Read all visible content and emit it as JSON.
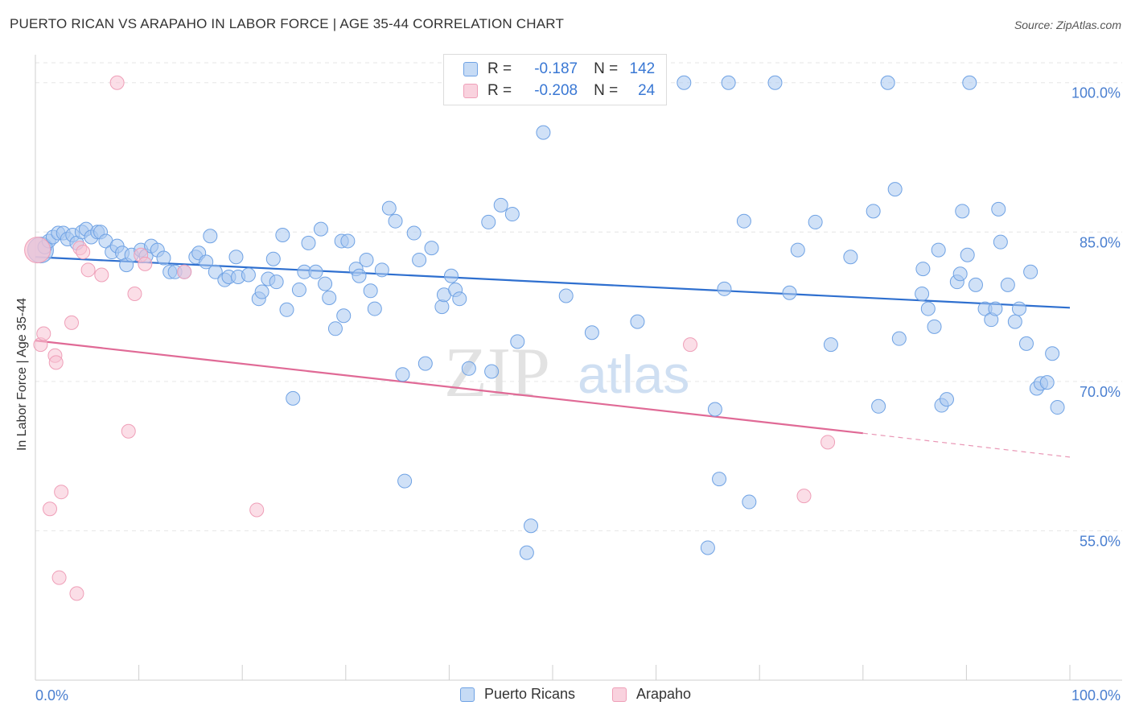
{
  "title": "PUERTO RICAN VS ARAPAHO IN LABOR FORCE | AGE 35-44 CORRELATION CHART",
  "source": "Source: ZipAtlas.com",
  "watermark": {
    "zip": "ZIP",
    "atlas": "atlas"
  },
  "legend_top": [
    {
      "r_label": "R =",
      "r_value": "-0.187",
      "n_label": "N =",
      "n_value": "142",
      "color": "#9ec1ef"
    },
    {
      "r_label": "R =",
      "r_value": "-0.208",
      "n_label": "N =",
      "n_value": "24",
      "color": "#f5b5c8"
    }
  ],
  "legend_bottom": [
    {
      "label": "Puerto Ricans",
      "color": "#9ec1ef"
    },
    {
      "label": "Arapaho",
      "color": "#f5b5c8"
    }
  ],
  "chart_data": {
    "type": "scatter",
    "xlabel": "",
    "ylabel": "In Labor Force | Age 35-44",
    "xlim": [
      0,
      100
    ],
    "ylim": [
      40,
      102
    ],
    "x_tick_labels": [
      "0.0%",
      "100.0%"
    ],
    "y_ticks": [
      55,
      70,
      85,
      100
    ],
    "y_tick_labels": [
      "55.0%",
      "70.0%",
      "85.0%",
      "100.0%"
    ],
    "grid": true,
    "series": [
      {
        "name": "Puerto Ricans",
        "color": "#6fa2e4",
        "fill": "#a9c8f0",
        "trend": {
          "x": [
            0,
            100
          ],
          "y": [
            82.5,
            77.4
          ],
          "color": "#2e6fcf"
        },
        "points": [
          [
            0.5,
            83.2
          ],
          [
            0.9,
            83.5
          ],
          [
            1.3,
            84.1
          ],
          [
            1.7,
            84.5
          ],
          [
            2.2,
            84.9
          ],
          [
            2.7,
            84.9
          ],
          [
            3.1,
            84.3
          ],
          [
            3.6,
            84.7
          ],
          [
            4.0,
            83.9
          ],
          [
            4.5,
            85.0
          ],
          [
            4.9,
            85.3
          ],
          [
            5.4,
            84.5
          ],
          [
            6.0,
            85.0
          ],
          [
            6.3,
            85.0
          ],
          [
            6.8,
            84.1
          ],
          [
            7.4,
            83.0
          ],
          [
            7.9,
            83.6
          ],
          [
            8.4,
            82.9
          ],
          [
            8.8,
            81.7
          ],
          [
            9.3,
            82.7
          ],
          [
            10.2,
            83.2
          ],
          [
            10.7,
            82.6
          ],
          [
            11.2,
            83.6
          ],
          [
            11.8,
            83.2
          ],
          [
            12.4,
            82.4
          ],
          [
            13.0,
            81.0
          ],
          [
            13.5,
            81.0
          ],
          [
            14.4,
            81.0
          ],
          [
            15.5,
            82.5
          ],
          [
            15.8,
            82.9
          ],
          [
            16.5,
            82.0
          ],
          [
            16.9,
            84.6
          ],
          [
            17.4,
            81.0
          ],
          [
            18.3,
            80.2
          ],
          [
            18.7,
            80.5
          ],
          [
            19.4,
            82.5
          ],
          [
            19.6,
            80.5
          ],
          [
            20.6,
            80.7
          ],
          [
            21.6,
            78.3
          ],
          [
            21.9,
            79.0
          ],
          [
            22.5,
            80.3
          ],
          [
            23.0,
            82.3
          ],
          [
            23.3,
            80.0
          ],
          [
            23.9,
            84.7
          ],
          [
            24.3,
            77.2
          ],
          [
            24.9,
            68.3
          ],
          [
            25.5,
            79.2
          ],
          [
            26.0,
            81.0
          ],
          [
            26.4,
            83.9
          ],
          [
            27.1,
            81.0
          ],
          [
            27.6,
            85.3
          ],
          [
            28.0,
            79.8
          ],
          [
            28.4,
            78.4
          ],
          [
            29.0,
            75.3
          ],
          [
            29.6,
            84.1
          ],
          [
            29.8,
            76.6
          ],
          [
            30.2,
            84.1
          ],
          [
            31.0,
            81.3
          ],
          [
            31.3,
            80.6
          ],
          [
            32.0,
            82.2
          ],
          [
            32.4,
            79.1
          ],
          [
            32.8,
            77.3
          ],
          [
            33.5,
            81.2
          ],
          [
            34.2,
            87.4
          ],
          [
            34.8,
            86.1
          ],
          [
            35.5,
            70.7
          ],
          [
            35.7,
            60.0
          ],
          [
            36.6,
            84.9
          ],
          [
            37.1,
            82.2
          ],
          [
            37.7,
            71.8
          ],
          [
            38.3,
            83.4
          ],
          [
            39.3,
            77.5
          ],
          [
            39.5,
            78.7
          ],
          [
            40.2,
            80.6
          ],
          [
            40.6,
            79.2
          ],
          [
            41.0,
            78.3
          ],
          [
            41.9,
            71.3
          ],
          [
            43.8,
            86.0
          ],
          [
            44.1,
            71.0
          ],
          [
            45.0,
            87.7
          ],
          [
            46.1,
            86.8
          ],
          [
            46.6,
            74.0
          ],
          [
            47.3,
            99.8
          ],
          [
            47.5,
            52.8
          ],
          [
            47.9,
            55.5
          ],
          [
            49.1,
            95.0
          ],
          [
            51.3,
            78.6
          ],
          [
            53.8,
            74.9
          ],
          [
            58.2,
            76.0
          ],
          [
            62.7,
            100.0
          ],
          [
            65.0,
            53.3
          ],
          [
            65.7,
            67.2
          ],
          [
            66.1,
            60.2
          ],
          [
            66.6,
            79.3
          ],
          [
            67.0,
            100.0
          ],
          [
            68.5,
            86.1
          ],
          [
            69.0,
            57.9
          ],
          [
            71.5,
            100.0
          ],
          [
            72.9,
            78.9
          ],
          [
            73.7,
            83.2
          ],
          [
            75.4,
            86.0
          ],
          [
            76.9,
            73.7
          ],
          [
            78.8,
            82.5
          ],
          [
            81.0,
            87.1
          ],
          [
            81.5,
            67.5
          ],
          [
            82.4,
            100.0
          ],
          [
            83.1,
            89.3
          ],
          [
            83.5,
            74.3
          ],
          [
            85.7,
            78.8
          ],
          [
            85.8,
            81.3
          ],
          [
            86.3,
            77.3
          ],
          [
            86.9,
            75.5
          ],
          [
            87.3,
            83.2
          ],
          [
            87.6,
            67.6
          ],
          [
            88.1,
            68.2
          ],
          [
            89.1,
            80.0
          ],
          [
            89.4,
            80.8
          ],
          [
            89.6,
            87.1
          ],
          [
            90.1,
            82.7
          ],
          [
            90.3,
            100.0
          ],
          [
            90.9,
            79.7
          ],
          [
            91.8,
            77.3
          ],
          [
            92.4,
            76.2
          ],
          [
            92.8,
            77.3
          ],
          [
            93.1,
            87.3
          ],
          [
            93.3,
            84.0
          ],
          [
            94.0,
            79.7
          ],
          [
            94.7,
            76.0
          ],
          [
            95.1,
            77.3
          ],
          [
            95.8,
            73.8
          ],
          [
            96.2,
            81.0
          ],
          [
            96.8,
            69.3
          ],
          [
            97.2,
            69.8
          ],
          [
            97.8,
            69.9
          ],
          [
            98.3,
            72.8
          ],
          [
            98.8,
            67.4
          ]
        ]
      },
      {
        "name": "Arapaho",
        "color": "#ef9fb8",
        "fill": "#f7c3d3",
        "trend": {
          "x": [
            0,
            80
          ],
          "y": [
            74.1,
            64.8
          ],
          "dash_x": [
            80,
            100
          ],
          "dash_y": [
            64.8,
            62.4
          ],
          "color": "#e06a96"
        },
        "points": [
          [
            0.2,
            83.2
          ],
          [
            0.5,
            73.7
          ],
          [
            0.8,
            74.8
          ],
          [
            1.4,
            57.2
          ],
          [
            1.9,
            72.6
          ],
          [
            2.0,
            71.9
          ],
          [
            2.3,
            50.3
          ],
          [
            2.5,
            58.9
          ],
          [
            3.5,
            75.9
          ],
          [
            4.0,
            48.7
          ],
          [
            4.3,
            83.4
          ],
          [
            4.6,
            83.0
          ],
          [
            5.1,
            81.2
          ],
          [
            6.4,
            80.7
          ],
          [
            7.9,
            100.0
          ],
          [
            9.0,
            65.0
          ],
          [
            9.6,
            78.8
          ],
          [
            10.2,
            82.7
          ],
          [
            10.6,
            81.8
          ],
          [
            14.4,
            81.0
          ],
          [
            21.4,
            57.1
          ],
          [
            63.3,
            73.7
          ],
          [
            74.3,
            58.5
          ],
          [
            76.6,
            63.9
          ]
        ]
      }
    ]
  }
}
